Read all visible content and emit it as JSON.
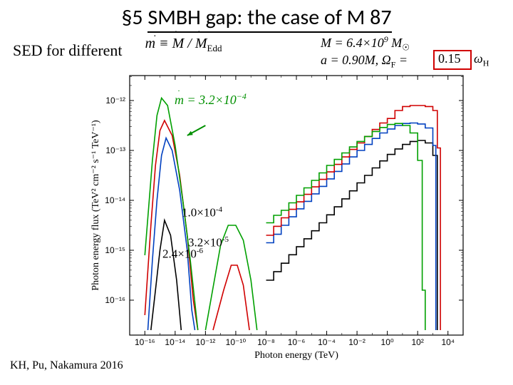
{
  "title": {
    "prefix": "§5",
    "rest": "SMBH gap: the case of M 87"
  },
  "subtitle": "SED for different",
  "eqn_m_def": "m ≡ M / M",
  "eqn_m_def_sub": "Edd",
  "eqn_mass": {
    "lhs": "M = 6.4×10",
    "sup": "9",
    "rhs": " M",
    "sub": "☉"
  },
  "eqn_spin": {
    "lhs": "a = 0.90M,   Ω",
    "sub": "F",
    "mid": " = ",
    "boxed": "0.15",
    "tail": "ω",
    "tailsub": "H"
  },
  "green_label": {
    "lhs": "m = 3.2×10",
    "sup": "−4"
  },
  "annot1": {
    "text": "1.0×10",
    "sup": "-4"
  },
  "annot2": {
    "text": "3.2×10",
    "sup": "-5"
  },
  "annot3": {
    "text": "2.4×10",
    "sup": "-6"
  },
  "credit": "KH, Pu, Nakamura 2016",
  "axes": {
    "xlabel": "Photon energy (TeV)",
    "ylabel": "Photon energy flux (TeV² cm⁻² s⁻¹ TeV⁻¹)",
    "xticks": [
      "10⁻¹⁶",
      "10⁻¹⁴",
      "10⁻¹²",
      "10⁻¹⁰",
      "10⁻⁸",
      "10⁻⁶",
      "10⁻⁴",
      "10⁻²",
      "10⁰",
      "10²",
      "10⁴"
    ],
    "yticks": [
      "10⁻¹⁶",
      "10⁻¹⁵",
      "10⁻¹⁴",
      "10⁻¹³",
      "10⁻¹²"
    ],
    "xlim_log": [
      -17,
      5
    ],
    "ylim_log": [
      -16.7,
      -11.5
    ]
  },
  "style": {
    "bg": "#ffffff",
    "axis_color": "#000000",
    "redbox_color": "#d00000",
    "series": {
      "green": {
        "color": "#00a000",
        "width": 1.6
      },
      "red": {
        "color": "#d00000",
        "width": 1.6
      },
      "blue": {
        "color": "#0040c0",
        "width": 1.6
      },
      "black": {
        "color": "#000000",
        "width": 1.6
      }
    }
  },
  "curves_smooth": {
    "green": {
      "left_peak": [
        [
          -16.0,
          -15.1
        ],
        [
          -15.5,
          -13.2
        ],
        [
          -15.2,
          -12.3
        ],
        [
          -14.9,
          -11.95
        ],
        [
          -14.5,
          -12.1
        ],
        [
          -14.0,
          -12.9
        ],
        [
          -13.5,
          -14.0
        ],
        [
          -13.0,
          -15.2
        ],
        [
          -12.5,
          -16.6
        ]
      ],
      "right_bump": [
        [
          -12.0,
          -16.6
        ],
        [
          -11.0,
          -14.9
        ],
        [
          -10.5,
          -14.5
        ],
        [
          -10.0,
          -14.5
        ],
        [
          -9.5,
          -14.8
        ],
        [
          -9.0,
          -15.6
        ],
        [
          -8.6,
          -16.6
        ]
      ]
    },
    "red": {
      "left_peak": [
        [
          -16.0,
          -16.3
        ],
        [
          -15.6,
          -14.5
        ],
        [
          -15.3,
          -13.3
        ],
        [
          -15.0,
          -12.6
        ],
        [
          -14.7,
          -12.4
        ],
        [
          -14.2,
          -12.7
        ],
        [
          -13.7,
          -13.5
        ],
        [
          -13.2,
          -14.7
        ],
        [
          -12.8,
          -16.0
        ],
        [
          -12.5,
          -16.6
        ]
      ],
      "right_bump": [
        [
          -11.5,
          -16.6
        ],
        [
          -10.8,
          -15.8
        ],
        [
          -10.3,
          -15.3
        ],
        [
          -9.9,
          -15.3
        ],
        [
          -9.5,
          -15.7
        ],
        [
          -9.1,
          -16.6
        ]
      ]
    },
    "blue": {
      "left_peak": [
        [
          -15.8,
          -16.6
        ],
        [
          -15.5,
          -15.2
        ],
        [
          -15.2,
          -14.0
        ],
        [
          -14.9,
          -13.1
        ],
        [
          -14.6,
          -12.75
        ],
        [
          -14.2,
          -13.0
        ],
        [
          -13.7,
          -13.8
        ],
        [
          -13.2,
          -15.0
        ],
        [
          -12.9,
          -16.2
        ],
        [
          -12.7,
          -16.6
        ]
      ]
    },
    "black": {
      "left_peak": [
        [
          -15.6,
          -16.6
        ],
        [
          -15.3,
          -15.8
        ],
        [
          -15.0,
          -15.0
        ],
        [
          -14.7,
          -14.4
        ],
        [
          -14.3,
          -14.7
        ],
        [
          -13.9,
          -15.6
        ],
        [
          -13.6,
          -16.6
        ]
      ]
    }
  },
  "curves_step": {
    "green": [
      [
        -8.0,
        -14.45
      ],
      [
        -7.5,
        -14.3
      ],
      [
        -7.0,
        -14.2
      ],
      [
        -6.5,
        -14.05
      ],
      [
        -6.0,
        -13.9
      ],
      [
        -5.5,
        -13.75
      ],
      [
        -5.0,
        -13.6
      ],
      [
        -4.5,
        -13.45
      ],
      [
        -4.0,
        -13.3
      ],
      [
        -3.5,
        -13.18
      ],
      [
        -3.0,
        -13.05
      ],
      [
        -2.5,
        -12.93
      ],
      [
        -2.0,
        -12.82
      ],
      [
        -1.5,
        -12.72
      ],
      [
        -1.0,
        -12.62
      ],
      [
        -0.5,
        -12.54
      ],
      [
        0.0,
        -12.48
      ],
      [
        0.5,
        -12.46
      ],
      [
        1.0,
        -12.5
      ],
      [
        1.5,
        -12.65
      ],
      [
        2.0,
        -13.2
      ],
      [
        2.3,
        -15.8
      ],
      [
        2.5,
        -16.6
      ]
    ],
    "red": [
      [
        -8.0,
        -14.7
      ],
      [
        -7.5,
        -14.52
      ],
      [
        -7.0,
        -14.35
      ],
      [
        -6.5,
        -14.18
      ],
      [
        -6.0,
        -14.03
      ],
      [
        -5.5,
        -13.88
      ],
      [
        -5.0,
        -13.73
      ],
      [
        -4.5,
        -13.58
      ],
      [
        -4.0,
        -13.43
      ],
      [
        -3.5,
        -13.28
      ],
      [
        -3.0,
        -13.13
      ],
      [
        -2.5,
        -12.98
      ],
      [
        -2.0,
        -12.85
      ],
      [
        -1.5,
        -12.72
      ],
      [
        -1.0,
        -12.58
      ],
      [
        -0.5,
        -12.45
      ],
      [
        0.0,
        -12.36
      ],
      [
        0.5,
        -12.2
      ],
      [
        1.0,
        -12.12
      ],
      [
        1.5,
        -12.1
      ],
      [
        2.0,
        -12.1
      ],
      [
        2.5,
        -12.12
      ],
      [
        3.0,
        -12.2
      ],
      [
        3.3,
        -12.95
      ],
      [
        3.5,
        -16.6
      ]
    ],
    "blue": [
      [
        -8.0,
        -14.85
      ],
      [
        -7.5,
        -14.68
      ],
      [
        -7.0,
        -14.5
      ],
      [
        -6.5,
        -14.33
      ],
      [
        -6.0,
        -14.17
      ],
      [
        -5.5,
        -14.02
      ],
      [
        -5.0,
        -13.87
      ],
      [
        -4.5,
        -13.72
      ],
      [
        -4.0,
        -13.57
      ],
      [
        -3.5,
        -13.42
      ],
      [
        -3.0,
        -13.27
      ],
      [
        -2.5,
        -13.13
      ],
      [
        -2.0,
        -13.0
      ],
      [
        -1.5,
        -12.88
      ],
      [
        -1.0,
        -12.76
      ],
      [
        -0.5,
        -12.65
      ],
      [
        0.0,
        -12.57
      ],
      [
        0.5,
        -12.5
      ],
      [
        1.0,
        -12.46
      ],
      [
        1.5,
        -12.45
      ],
      [
        2.0,
        -12.47
      ],
      [
        2.5,
        -12.55
      ],
      [
        3.0,
        -12.9
      ],
      [
        3.2,
        -16.6
      ]
    ],
    "black": [
      [
        -8.0,
        -15.6
      ],
      [
        -7.5,
        -15.43
      ],
      [
        -7.0,
        -15.26
      ],
      [
        -6.5,
        -15.09
      ],
      [
        -6.0,
        -14.93
      ],
      [
        -5.5,
        -14.77
      ],
      [
        -5.0,
        -14.61
      ],
      [
        -4.5,
        -14.45
      ],
      [
        -4.0,
        -14.29
      ],
      [
        -3.5,
        -14.13
      ],
      [
        -3.0,
        -13.97
      ],
      [
        -2.5,
        -13.81
      ],
      [
        -2.0,
        -13.65
      ],
      [
        -1.5,
        -13.5
      ],
      [
        -1.0,
        -13.35
      ],
      [
        -0.5,
        -13.21
      ],
      [
        0.0,
        -13.08
      ],
      [
        0.5,
        -12.97
      ],
      [
        1.0,
        -12.88
      ],
      [
        1.5,
        -12.82
      ],
      [
        2.0,
        -12.8
      ],
      [
        2.5,
        -12.85
      ],
      [
        3.0,
        -13.1
      ],
      [
        3.3,
        -16.6
      ]
    ]
  },
  "arrow": {
    "from_log": [
      -12.0,
      -12.5
    ],
    "to_log": [
      -13.2,
      -12.7
    ],
    "color": "#009000"
  }
}
